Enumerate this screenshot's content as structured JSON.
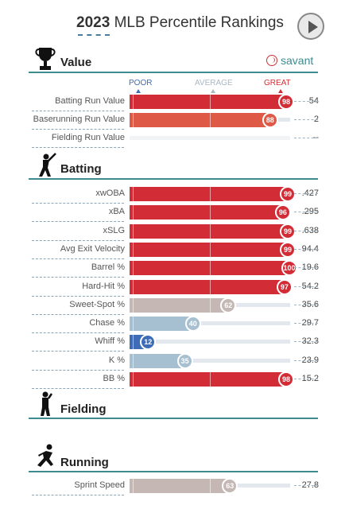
{
  "header": {
    "year": "2023",
    "title": "MLB Percentile Rankings",
    "play_icon": "play-icon"
  },
  "brand": {
    "name": "savant",
    "icon": "baseball-icon",
    "color": "#3e8a8f"
  },
  "scale": {
    "poor": "POOR",
    "average": "AVERAGE",
    "great": "GREAT"
  },
  "colors": {
    "great": "#d22d36",
    "good": "#de5a47",
    "above": "#c9b4ad",
    "neutral": "#c5b8b4",
    "below": "#a7c0d1",
    "poor": "#3e6cb6",
    "teal": "#3e8a8f"
  },
  "sections": {
    "value": {
      "title": "Value",
      "icon": "trophy-icon"
    },
    "batting": {
      "title": "Batting",
      "icon": "batter-icon"
    },
    "fielding": {
      "title": "Fielding",
      "icon": "fielder-icon"
    },
    "running": {
      "title": "Running",
      "icon": "runner-icon"
    }
  },
  "value_rows": [
    {
      "label": "Batting Run Value",
      "percentile": 98,
      "display": "98",
      "stat": "54",
      "color": "#d22d36"
    },
    {
      "label": "Baserunning Run Value",
      "percentile": 88,
      "display": "88",
      "stat": "2",
      "color": "#de5a47"
    },
    {
      "label": "Fielding Run Value",
      "percentile": null,
      "display": "",
      "stat": "--",
      "color": ""
    }
  ],
  "batting_rows": [
    {
      "label": "xwOBA",
      "percentile": 99,
      "display": "99",
      "stat": ".427",
      "color": "#d22d36"
    },
    {
      "label": "xBA",
      "percentile": 96,
      "display": "96",
      "stat": ".295",
      "color": "#d22d36"
    },
    {
      "label": "xSLG",
      "percentile": 99,
      "display": "99",
      "stat": ".638",
      "color": "#d22d36"
    },
    {
      "label": "Avg Exit Velocity",
      "percentile": 99,
      "display": "99",
      "stat": "94.4",
      "color": "#d22d36"
    },
    {
      "label": "Barrel %",
      "percentile": 100,
      "display": "100",
      "stat": "19.6",
      "color": "#d22d36"
    },
    {
      "label": "Hard-Hit %",
      "percentile": 97,
      "display": "97",
      "stat": "54.2",
      "color": "#d22d36"
    },
    {
      "label": "Sweet-Spot %",
      "percentile": 62,
      "display": "62",
      "stat": "35.6",
      "color": "#c5b8b4"
    },
    {
      "label": "Chase %",
      "percentile": 40,
      "display": "40",
      "stat": "29.7",
      "color": "#a7c0d1"
    },
    {
      "label": "Whiff %",
      "percentile": 12,
      "display": "12",
      "stat": "32.3",
      "color": "#3e6cb6"
    },
    {
      "label": "K %",
      "percentile": 35,
      "display": "35",
      "stat": "23.9",
      "color": "#a7c0d1"
    },
    {
      "label": "BB %",
      "percentile": 98,
      "display": "98",
      "stat": "15.2",
      "color": "#d22d36"
    }
  ],
  "running_rows": [
    {
      "label": "Sprint Speed",
      "percentile": 63,
      "display": "63",
      "stat": "27.8",
      "color": "#c5b8b4"
    }
  ]
}
